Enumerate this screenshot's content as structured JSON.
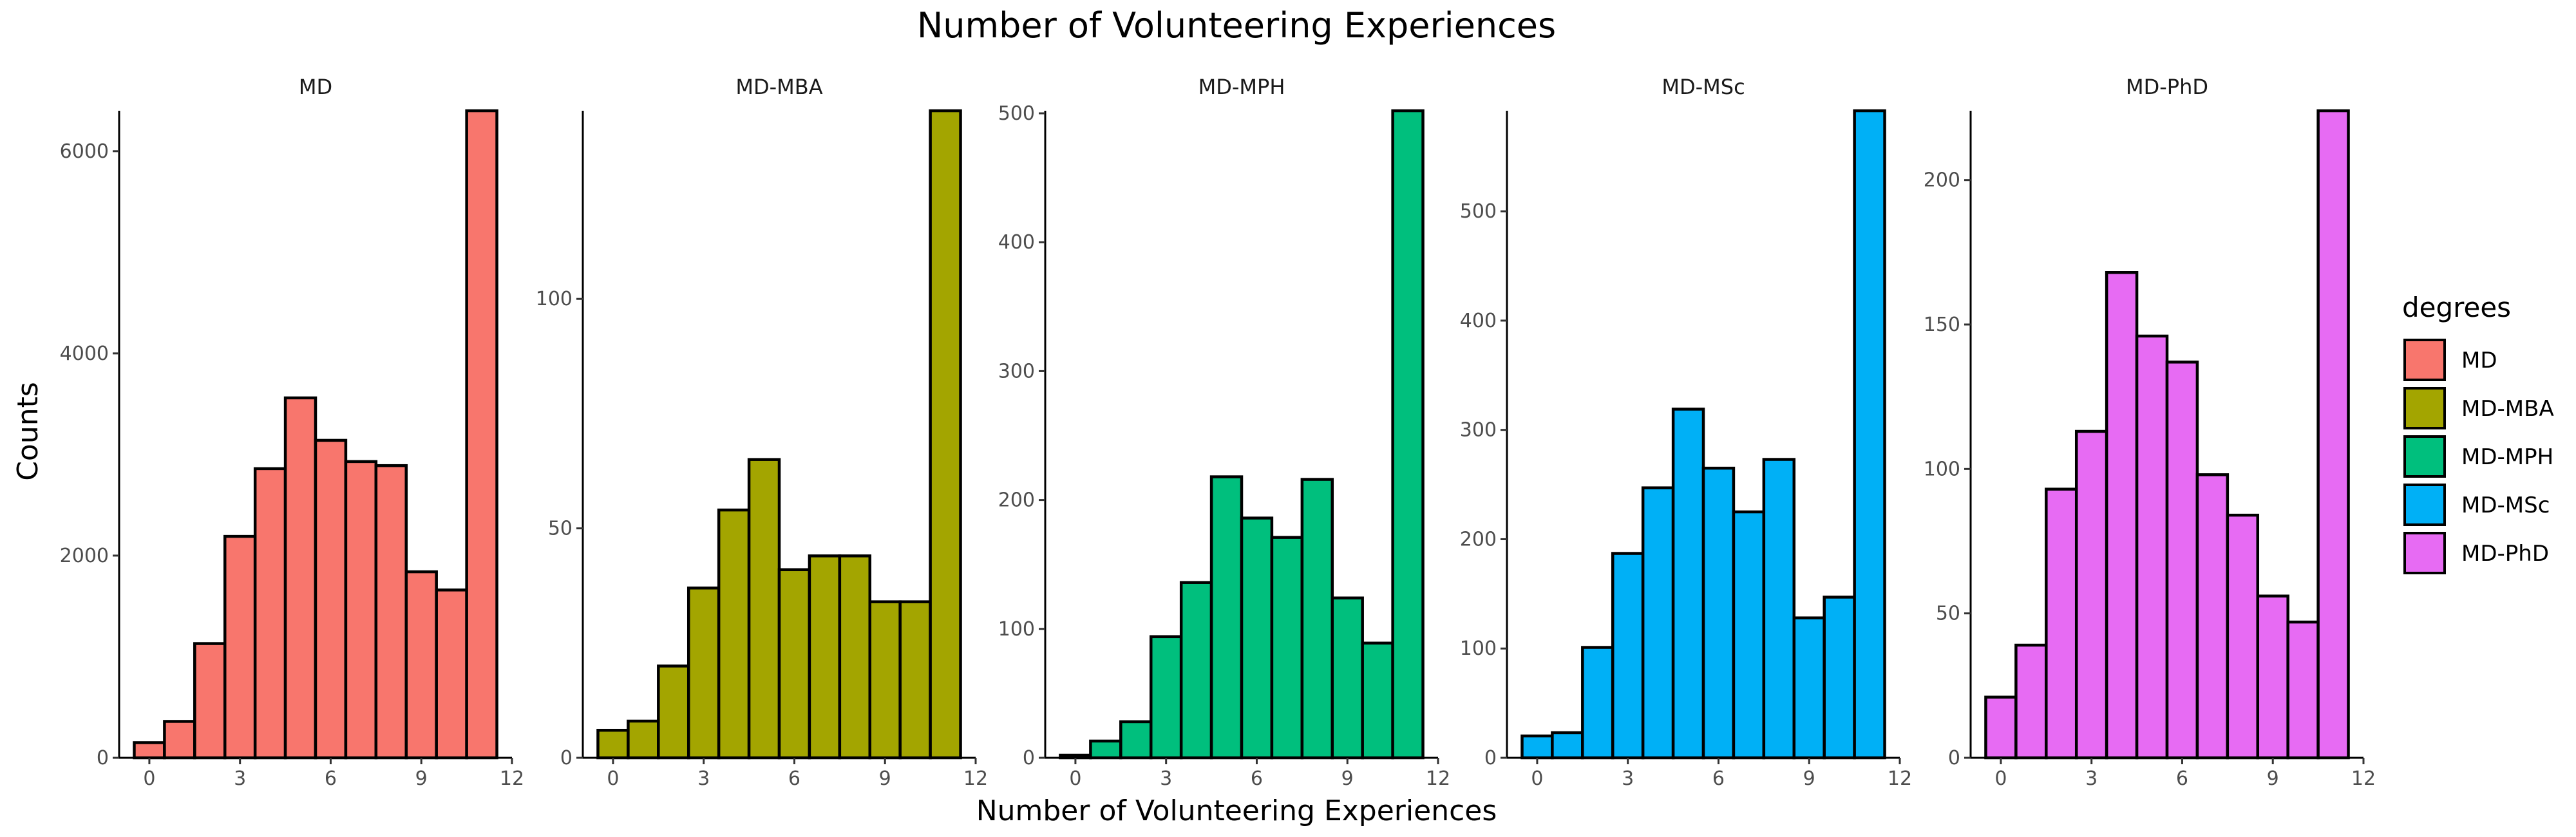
{
  "chart_data": {
    "type": "bar",
    "title": "Number of Volunteering Experiences",
    "xlabel": "Number of Volunteering Experiences",
    "ylabel": "Counts",
    "grid": false,
    "legend": {
      "title": "degrees",
      "placement": "right"
    },
    "x": [
      0,
      1,
      2,
      3,
      4,
      5,
      6,
      7,
      8,
      9,
      10,
      11
    ],
    "x_ticks": [
      0,
      3,
      6,
      9,
      12
    ],
    "xlim": [
      -1,
      12
    ],
    "panels": [
      {
        "name": "MD",
        "color": "#F8766D",
        "ylim": [
          0,
          6400
        ],
        "y_ticks": [
          0,
          2000,
          4000,
          6000
        ],
        "values": [
          150,
          360,
          1130,
          2190,
          2860,
          3560,
          3140,
          2930,
          2890,
          1840,
          1660,
          6400
        ]
      },
      {
        "name": "MD-MBA",
        "color": "#A3A500",
        "ylim": [
          0,
          141
        ],
        "y_ticks": [
          0,
          50,
          100
        ],
        "values": [
          6,
          8,
          20,
          37,
          54,
          65,
          41,
          44,
          44,
          34,
          34,
          141
        ]
      },
      {
        "name": "MD-MPH",
        "color": "#00BF7D",
        "ylim": [
          0,
          502
        ],
        "y_ticks": [
          0,
          100,
          200,
          300,
          400,
          500
        ],
        "values": [
          2,
          13,
          28,
          94,
          136,
          218,
          186,
          171,
          216,
          124,
          89,
          502
        ]
      },
      {
        "name": "MD-MSc",
        "color": "#00B0F6",
        "ylim": [
          0,
          592
        ],
        "y_ticks": [
          0,
          100,
          200,
          300,
          400,
          500
        ],
        "values": [
          20,
          23,
          101,
          187,
          247,
          319,
          265,
          225,
          273,
          128,
          147,
          592
        ]
      },
      {
        "name": "MD-PhD",
        "color": "#E76BF3",
        "ylim": [
          0,
          224
        ],
        "y_ticks": [
          0,
          50,
          100,
          150,
          200
        ],
        "values": [
          21,
          39,
          93,
          113,
          168,
          146,
          137,
          98,
          84,
          56,
          47,
          224
        ]
      }
    ]
  }
}
